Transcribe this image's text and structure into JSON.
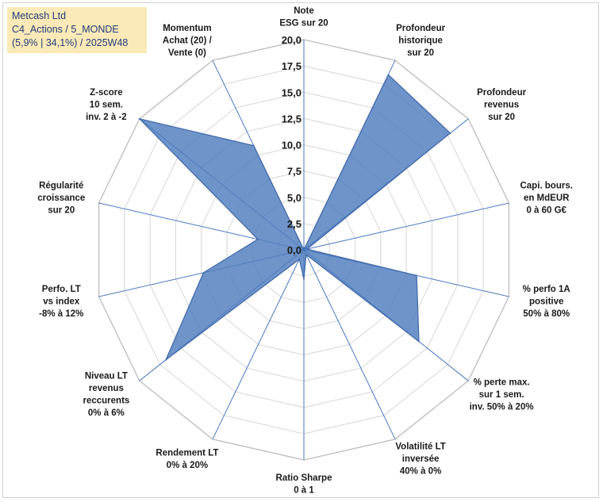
{
  "title_box": {
    "line1": "Metcash Ltd",
    "line2": "C4_Actions / 5_MONDE",
    "line3": "(5,9% | 34,1%) / 2025W48"
  },
  "chart_data": {
    "type": "radar",
    "title": "Metcash Ltd",
    "rmin": 0,
    "rmax": 20,
    "tick_step": 2.5,
    "tick_labels": [
      "0,0",
      "2,5",
      "5,0",
      "7,5",
      "10,0",
      "12,5",
      "15,0",
      "17,5",
      "20,0"
    ],
    "axes": [
      {
        "label": [
          "Note",
          "ESG sur 20"
        ],
        "value": 0
      },
      {
        "label": [
          "Profondeur",
          "historique",
          "sur 20"
        ],
        "value": 18.5
      },
      {
        "label": [
          "Profondeur",
          "revenus",
          "sur 20"
        ],
        "value": 17.8
      },
      {
        "label": [
          "Capi. bours.",
          "en MdEUR",
          "0 à 60 G€"
        ],
        "value": 0.3
      },
      {
        "label": [
          "% perfo 1A",
          "positive",
          "50% à 80%"
        ],
        "value": 11.0
      },
      {
        "label": [
          "% perte max.",
          "sur 1 sem.",
          "inv. 50% à 20%"
        ],
        "value": 14.0
      },
      {
        "label": [
          "Volatilité LT",
          "inversée",
          "40% à 0%"
        ],
        "value": 0.5
      },
      {
        "label": [
          "Ratio Sharpe",
          "0 à 1"
        ],
        "value": 2.8
      },
      {
        "label": [
          "Rendement LT",
          "0% à 20%"
        ],
        "value": 1.0
      },
      {
        "label": [
          "Niveau LT",
          "revenus",
          "reccurents",
          "0% à 6%"
        ],
        "value": 16.8
      },
      {
        "label": [
          "Perfo. LT",
          "vs index",
          "-8% à 12%"
        ],
        "value": 9.8
      },
      {
        "label": [
          "Régularité",
          "croissance",
          "sur 20"
        ],
        "value": 4.5
      },
      {
        "label": [
          "Z-score",
          "10 sem.",
          "inv. 2 à -2"
        ],
        "value": 20.0
      },
      {
        "label": [
          "Momentum",
          "Achat (20) /",
          "Vente (0)"
        ],
        "value": 11.0
      }
    ],
    "series": [
      {
        "name": "Metcash Ltd",
        "color": "#4f7dbd"
      }
    ]
  }
}
